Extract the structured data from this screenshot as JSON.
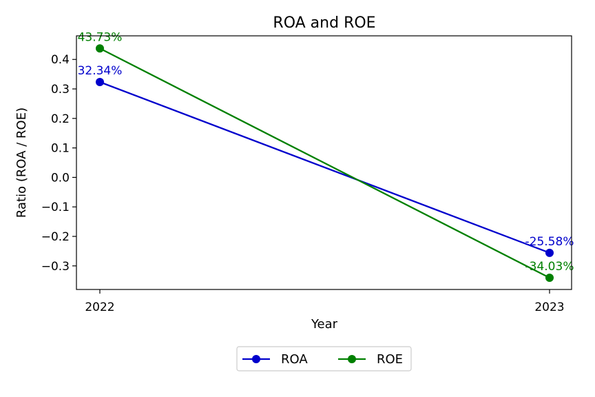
{
  "chart_data": {
    "type": "line",
    "title": "ROA and ROE",
    "xlabel": "Year",
    "ylabel": "Ratio (ROA / ROE)",
    "categories": [
      "2022",
      "2023"
    ],
    "ylim": [
      -0.38,
      0.48
    ],
    "yticks": [
      -0.3,
      -0.2,
      -0.1,
      0.0,
      0.1,
      0.2,
      0.3,
      0.4
    ],
    "ytick_labels": [
      "−0.3",
      "−0.2",
      "−0.1",
      "0.0",
      "0.1",
      "0.2",
      "0.3",
      "0.4"
    ],
    "grid": false,
    "legend": "bottom-center",
    "series": [
      {
        "name": "ROA",
        "color": "#0000cc",
        "values": [
          0.3234,
          -0.2558
        ],
        "labels": [
          "32.34%",
          "-25.58%"
        ]
      },
      {
        "name": "ROE",
        "color": "#008000",
        "values": [
          0.4373,
          -0.3403
        ],
        "labels": [
          "43.73%",
          "-34.03%"
        ]
      }
    ]
  }
}
